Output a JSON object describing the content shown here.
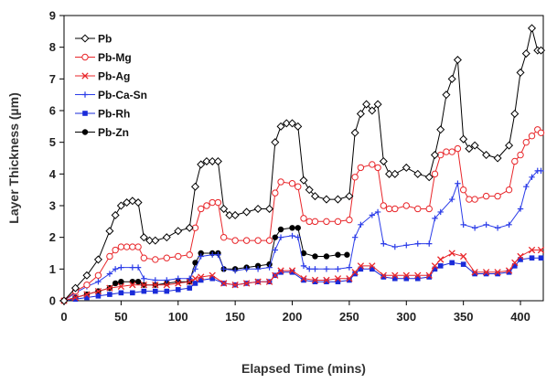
{
  "chart_data": {
    "type": "line",
    "xlabel": "Elapsed Time (mins)",
    "ylabel": "Layer Thickness (µm)",
    "xlim": [
      0,
      420
    ],
    "ylim": [
      0,
      9
    ],
    "xticks": [
      0,
      50,
      100,
      150,
      200,
      250,
      300,
      350,
      400
    ],
    "yticks": [
      0,
      1,
      2,
      3,
      4,
      5,
      6,
      7,
      8,
      9
    ],
    "grid": false,
    "legend_position": "top-left",
    "series": [
      {
        "name": "Pb",
        "color": "#000000",
        "marker": "diamond-open",
        "x": [
          0,
          10,
          20,
          30,
          40,
          45,
          50,
          55,
          60,
          65,
          70,
          75,
          80,
          90,
          100,
          110,
          115,
          120,
          125,
          130,
          135,
          140,
          145,
          150,
          160,
          170,
          180,
          185,
          190,
          195,
          200,
          205,
          210,
          215,
          220,
          230,
          240,
          250,
          255,
          260,
          265,
          270,
          275,
          280,
          285,
          290,
          300,
          310,
          320,
          325,
          330,
          335,
          340,
          345,
          350,
          355,
          360,
          370,
          380,
          390,
          395,
          400,
          405,
          410,
          415,
          418
        ],
        "y": [
          0,
          0.4,
          0.8,
          1.3,
          2.2,
          2.7,
          3.0,
          3.1,
          3.15,
          3.1,
          2.0,
          1.9,
          1.9,
          2.0,
          2.2,
          2.3,
          3.6,
          4.3,
          4.4,
          4.4,
          4.4,
          2.9,
          2.7,
          2.7,
          2.8,
          2.9,
          2.9,
          5.0,
          5.5,
          5.6,
          5.6,
          5.5,
          3.8,
          3.5,
          3.3,
          3.2,
          3.2,
          3.3,
          5.3,
          5.9,
          6.2,
          6.0,
          6.2,
          4.4,
          4.0,
          4.0,
          4.2,
          4.0,
          3.9,
          4.6,
          5.4,
          6.5,
          7.0,
          7.6,
          5.1,
          4.8,
          4.9,
          4.6,
          4.5,
          4.9,
          5.9,
          7.2,
          7.8,
          8.6,
          7.9,
          7.9
        ]
      },
      {
        "name": "Pb-Mg",
        "color": "#e8262a",
        "marker": "circle-open",
        "x": [
          0,
          10,
          20,
          30,
          40,
          45,
          50,
          55,
          60,
          65,
          70,
          80,
          90,
          100,
          110,
          115,
          120,
          125,
          130,
          135,
          140,
          150,
          160,
          170,
          180,
          185,
          190,
          200,
          205,
          210,
          215,
          220,
          230,
          240,
          250,
          255,
          260,
          270,
          275,
          280,
          285,
          290,
          300,
          310,
          320,
          325,
          330,
          335,
          340,
          345,
          350,
          355,
          360,
          370,
          380,
          390,
          395,
          400,
          405,
          410,
          415,
          418
        ],
        "y": [
          0,
          0.3,
          0.5,
          0.8,
          1.4,
          1.6,
          1.7,
          1.7,
          1.7,
          1.7,
          1.35,
          1.3,
          1.35,
          1.4,
          1.45,
          2.3,
          2.9,
          3.0,
          3.1,
          3.1,
          2.0,
          1.9,
          1.9,
          1.9,
          1.9,
          3.4,
          3.75,
          3.7,
          3.6,
          2.6,
          2.5,
          2.5,
          2.5,
          2.5,
          2.55,
          3.9,
          4.2,
          4.3,
          4.2,
          3.0,
          2.9,
          2.9,
          3.0,
          2.9,
          2.9,
          4.0,
          4.6,
          4.7,
          4.7,
          4.8,
          3.5,
          3.2,
          3.2,
          3.3,
          3.3,
          3.5,
          4.4,
          4.6,
          5.0,
          5.2,
          5.4,
          5.3
        ]
      },
      {
        "name": "Pb-Ag",
        "color": "#e8262a",
        "marker": "x",
        "x": [
          0,
          10,
          20,
          30,
          40,
          50,
          60,
          70,
          80,
          90,
          100,
          110,
          115,
          120,
          130,
          140,
          150,
          160,
          170,
          180,
          185,
          190,
          200,
          210,
          220,
          230,
          240,
          250,
          255,
          260,
          270,
          280,
          290,
          300,
          310,
          320,
          325,
          330,
          340,
          350,
          360,
          370,
          380,
          390,
          395,
          400,
          410,
          418
        ],
        "y": [
          0,
          0.1,
          0.2,
          0.3,
          0.4,
          0.45,
          0.5,
          0.5,
          0.5,
          0.5,
          0.55,
          0.6,
          0.7,
          0.75,
          0.8,
          0.55,
          0.5,
          0.55,
          0.6,
          0.6,
          0.8,
          0.95,
          0.95,
          0.7,
          0.65,
          0.65,
          0.7,
          0.7,
          0.9,
          1.1,
          1.1,
          0.8,
          0.8,
          0.8,
          0.8,
          0.8,
          1.1,
          1.3,
          1.5,
          1.4,
          0.9,
          0.9,
          0.9,
          0.95,
          1.2,
          1.4,
          1.6,
          1.6
        ]
      },
      {
        "name": "Pb-Ca-Sn",
        "color": "#2b3ce8",
        "marker": "plus",
        "x": [
          0,
          10,
          20,
          30,
          40,
          45,
          50,
          60,
          65,
          70,
          80,
          90,
          100,
          110,
          115,
          120,
          130,
          135,
          140,
          150,
          160,
          170,
          180,
          185,
          190,
          200,
          205,
          210,
          215,
          220,
          230,
          240,
          250,
          255,
          260,
          270,
          275,
          280,
          290,
          300,
          310,
          320,
          325,
          330,
          340,
          345,
          350,
          360,
          370,
          380,
          390,
          400,
          405,
          410,
          415,
          418
        ],
        "y": [
          0,
          0.25,
          0.45,
          0.6,
          0.85,
          1.0,
          1.05,
          1.05,
          1.05,
          0.7,
          0.65,
          0.65,
          0.7,
          0.7,
          1.0,
          1.4,
          1.45,
          1.45,
          1.0,
          0.95,
          1.0,
          1.0,
          1.05,
          1.6,
          2.0,
          2.05,
          2.0,
          1.1,
          1.0,
          1.0,
          1.0,
          1.0,
          1.05,
          2.0,
          2.4,
          2.7,
          2.8,
          1.8,
          1.7,
          1.75,
          1.8,
          1.8,
          2.6,
          2.8,
          3.2,
          3.7,
          2.4,
          2.3,
          2.4,
          2.3,
          2.4,
          2.9,
          3.6,
          3.9,
          4.1,
          4.1
        ]
      },
      {
        "name": "Pb-Rh",
        "color": "#1a2bd9",
        "marker": "square",
        "x": [
          0,
          10,
          20,
          30,
          40,
          50,
          60,
          70,
          80,
          90,
          100,
          110,
          115,
          120,
          130,
          140,
          150,
          160,
          170,
          180,
          185,
          190,
          200,
          210,
          220,
          230,
          240,
          250,
          255,
          260,
          270,
          280,
          290,
          300,
          310,
          320,
          325,
          330,
          340,
          350,
          360,
          370,
          380,
          390,
          395,
          400,
          410,
          418
        ],
        "y": [
          0,
          0.05,
          0.1,
          0.15,
          0.2,
          0.25,
          0.25,
          0.3,
          0.3,
          0.3,
          0.35,
          0.4,
          0.55,
          0.65,
          0.7,
          0.55,
          0.5,
          0.55,
          0.6,
          0.6,
          0.8,
          0.9,
          0.9,
          0.65,
          0.6,
          0.6,
          0.6,
          0.65,
          0.85,
          1.0,
          1.0,
          0.75,
          0.7,
          0.7,
          0.7,
          0.75,
          1.0,
          1.1,
          1.2,
          1.15,
          0.85,
          0.85,
          0.85,
          0.9,
          1.1,
          1.3,
          1.35,
          1.35
        ]
      },
      {
        "name": "Pb-Zn",
        "color": "#000000",
        "marker": "circle",
        "x": [
          0,
          10,
          20,
          30,
          40,
          45,
          50,
          60,
          65,
          70,
          80,
          90,
          100,
          110,
          115,
          120,
          130,
          135,
          140,
          150,
          160,
          170,
          180,
          185,
          190,
          200,
          205,
          210,
          220,
          230,
          240,
          248
        ],
        "y": [
          0,
          0.1,
          0.2,
          0.3,
          0.4,
          0.55,
          0.6,
          0.6,
          0.6,
          0.5,
          0.5,
          0.55,
          0.6,
          0.6,
          1.2,
          1.5,
          1.5,
          1.5,
          1.0,
          1.0,
          1.05,
          1.1,
          1.15,
          2.0,
          2.25,
          2.3,
          2.3,
          1.5,
          1.4,
          1.4,
          1.45,
          1.45
        ]
      }
    ]
  }
}
